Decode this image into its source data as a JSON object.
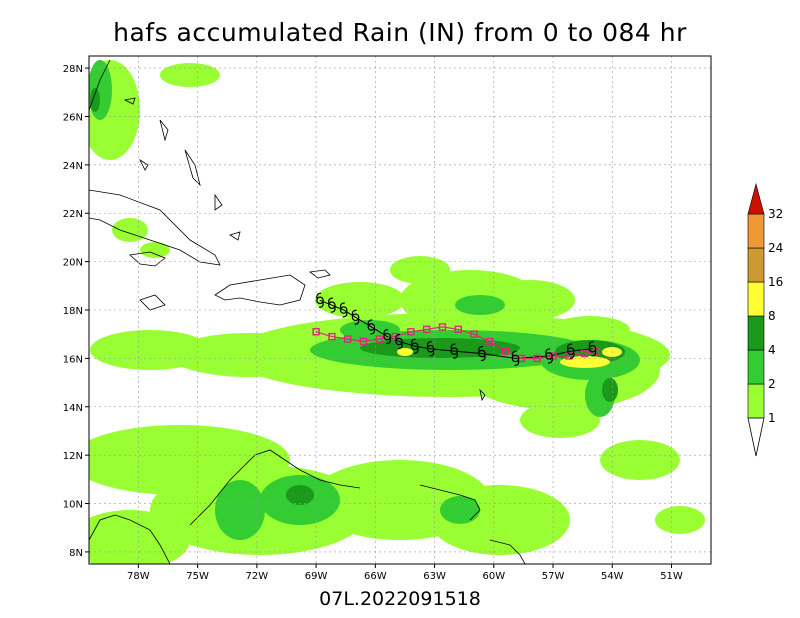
{
  "title": "hafs accumulated Rain (IN) from 0 to 084 hr",
  "subtitle": "07L.2022091518",
  "map": {
    "lon_ticks": [
      "78W",
      "75W",
      "72W",
      "69W",
      "66W",
      "63W",
      "60W",
      "57W",
      "54W",
      "51W"
    ],
    "lat_ticks": [
      "28N",
      "26N",
      "24N",
      "22N",
      "20N",
      "18N",
      "16N",
      "14N",
      "12N",
      "10N",
      "8N"
    ],
    "lon_range": [
      -80.5,
      -49.0
    ],
    "lat_range": [
      7.5,
      28.5
    ]
  },
  "legend": {
    "levels": [
      "1",
      "2",
      "4",
      "8",
      "16",
      "24",
      "32"
    ],
    "colors": [
      "#99ff33",
      "#33cc33",
      "#1a991a",
      "#ffff33",
      "#cc9933",
      "#ee9933",
      "#cc1100"
    ]
  },
  "track": {
    "black_markers_lon": [
      -68.8,
      -68.2,
      -67.6,
      -67.0,
      -66.2,
      -65.4,
      -64.8,
      -64.0,
      -63.2,
      -62.0,
      -60.6,
      -58.9,
      -57.2,
      -56.1,
      -55.0
    ],
    "black_markers_lat": [
      18.4,
      18.2,
      18.0,
      17.7,
      17.3,
      16.9,
      16.7,
      16.5,
      16.4,
      16.3,
      16.2,
      16.0,
      16.1,
      16.3,
      16.4
    ],
    "magenta_lon": [
      -69.0,
      -68.2,
      -67.4,
      -66.6,
      -65.8,
      -65.0,
      -64.2,
      -63.4,
      -62.6,
      -61.8,
      -61.0,
      -60.2,
      -59.4,
      -58.6,
      -57.8,
      -57.0,
      -56.2,
      -55.4,
      -54.8
    ],
    "magenta_lat": [
      17.1,
      16.9,
      16.8,
      16.7,
      16.8,
      16.9,
      17.1,
      17.2,
      17.3,
      17.2,
      17.0,
      16.7,
      16.3,
      16.0,
      16.0,
      16.1,
      16.1,
      16.2,
      16.3
    ]
  }
}
